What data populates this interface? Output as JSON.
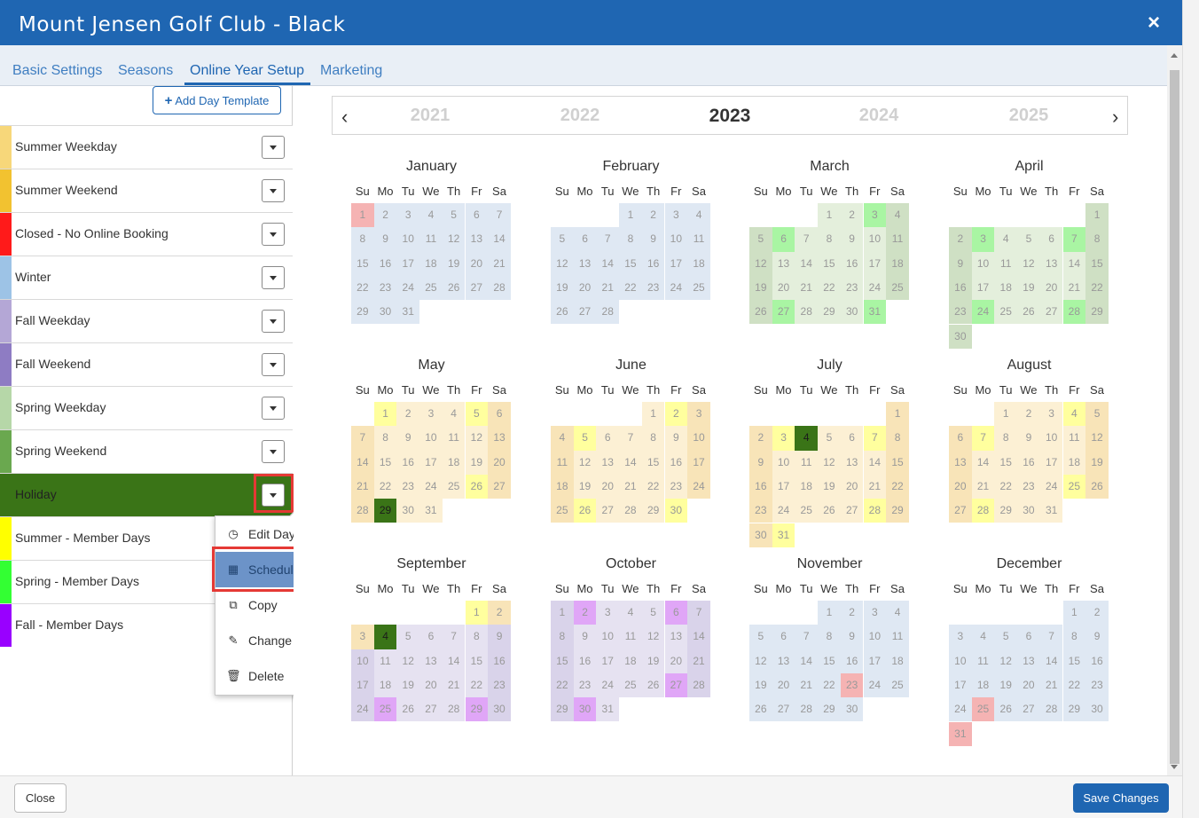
{
  "window": {
    "title": "Mount Jensen Golf Club - Black",
    "close_symbol": "×"
  },
  "tabs": [
    "Basic Settings",
    "Seasons",
    "Online Year Setup",
    "Marketing"
  ],
  "active_tab": "Online Year Setup",
  "sidebar": {
    "add_button_label": "Add Day Template",
    "templates": [
      {
        "name": "Summer Weekday",
        "color": "#f7d77a"
      },
      {
        "name": "Summer Weekend",
        "color": "#f2c230"
      },
      {
        "name": "Closed - No Online Booking",
        "color": "#ff1a1a"
      },
      {
        "name": "Winter",
        "color": "#9dc3e6"
      },
      {
        "name": "Fall Weekday",
        "color": "#b4a7d6"
      },
      {
        "name": "Fall Weekend",
        "color": "#8e7cc3"
      },
      {
        "name": "Spring Weekday",
        "color": "#b6d7a8"
      },
      {
        "name": "Spring Weekend",
        "color": "#6aa84f"
      },
      {
        "name": "Holiday",
        "color": "#3a7417"
      },
      {
        "name": "Summer - Member Days",
        "color": "#ffff00"
      },
      {
        "name": "Spring - Member Days",
        "color": "#33ff33"
      },
      {
        "name": "Fall - Member Days",
        "color": "#9900ff"
      }
    ],
    "selected_template": "Holiday"
  },
  "context_menu": {
    "items": [
      {
        "label": "Edit Day Template",
        "icon": "clock-icon"
      },
      {
        "label": "Schedule Dates",
        "icon": "calendar-icon"
      },
      {
        "label": "Copy",
        "icon": "copy-icon"
      },
      {
        "label": "Change Color",
        "icon": "paintbrush-icon"
      },
      {
        "label": "Delete",
        "icon": "trash-icon"
      }
    ],
    "active_item": "Schedule Dates"
  },
  "calendar": {
    "years": [
      "2021",
      "2022",
      "2023",
      "2024",
      "2025"
    ],
    "current_year": "2023",
    "prev_symbol": "‹",
    "next_symbol": "›",
    "weekdays": [
      "Su",
      "Mo",
      "Tu",
      "We",
      "Th",
      "Fr",
      "Sa"
    ],
    "template_colors": {
      "winter": "#dfe8f3",
      "spring_weekday": "#e4efdc",
      "spring_weekend": "#cfe0c4",
      "spring_member": "#a9f5a3",
      "summer_weekday": "#fcf0d4",
      "summer_weekend": "#f8e4b8",
      "summer_member": "#ffff9e",
      "fall_weekday": "#e6e2f1",
      "fall_weekend": "#d9d3ea",
      "fall_member": "#e0a6f7",
      "closed": "#f5b3b3",
      "holiday": "#3a7417"
    },
    "months": [
      {
        "name": "January",
        "days": 31,
        "start": 0,
        "ranges": [
          {
            "from": 1,
            "to": 31,
            "type": "winter"
          }
        ],
        "overrides": {
          "1": "closed"
        }
      },
      {
        "name": "February",
        "days": 28,
        "start": 3,
        "ranges": [
          {
            "from": 1,
            "to": 28,
            "type": "winter"
          }
        ],
        "overrides": {}
      },
      {
        "name": "March",
        "days": 31,
        "start": 3,
        "ranges": [
          {
            "from": 1,
            "to": 31,
            "type": "spring"
          }
        ],
        "overrides": {
          "3": "spring_member",
          "6": "spring_member",
          "27": "spring_member",
          "31": "spring_member"
        }
      },
      {
        "name": "April",
        "days": 30,
        "start": 6,
        "ranges": [
          {
            "from": 1,
            "to": 30,
            "type": "spring"
          }
        ],
        "overrides": {
          "3": "spring_member",
          "7": "spring_member",
          "24": "spring_member",
          "28": "spring_member"
        }
      },
      {
        "name": "May",
        "days": 31,
        "start": 1,
        "ranges": [
          {
            "from": 1,
            "to": 31,
            "type": "summer"
          }
        ],
        "overrides": {
          "1": "summer_member",
          "5": "summer_member",
          "26": "summer_member",
          "29": "holiday"
        }
      },
      {
        "name": "June",
        "days": 30,
        "start": 4,
        "ranges": [
          {
            "from": 1,
            "to": 30,
            "type": "summer"
          }
        ],
        "overrides": {
          "2": "summer_member",
          "5": "summer_member",
          "26": "summer_member",
          "30": "summer_member"
        }
      },
      {
        "name": "July",
        "days": 31,
        "start": 6,
        "ranges": [
          {
            "from": 1,
            "to": 31,
            "type": "summer"
          }
        ],
        "overrides": {
          "3": "summer_member",
          "4": "holiday",
          "7": "summer_member",
          "28": "summer_member",
          "31": "summer_member"
        }
      },
      {
        "name": "August",
        "days": 31,
        "start": 2,
        "ranges": [
          {
            "from": 1,
            "to": 31,
            "type": "summer"
          }
        ],
        "overrides": {
          "4": "summer_member",
          "7": "summer_member",
          "25": "summer_member",
          "28": "summer_member"
        }
      },
      {
        "name": "September",
        "days": 30,
        "start": 5,
        "ranges": [
          {
            "from": 1,
            "to": 3,
            "type": "summer"
          },
          {
            "from": 4,
            "to": 30,
            "type": "fall"
          }
        ],
        "overrides": {
          "1": "summer_member",
          "4": "holiday",
          "25": "fall_member",
          "29": "fall_member"
        }
      },
      {
        "name": "October",
        "days": 31,
        "start": 0,
        "ranges": [
          {
            "from": 1,
            "to": 31,
            "type": "fall"
          }
        ],
        "overrides": {
          "2": "fall_member",
          "6": "fall_member",
          "27": "fall_member",
          "30": "fall_member"
        }
      },
      {
        "name": "November",
        "days": 30,
        "start": 3,
        "ranges": [
          {
            "from": 1,
            "to": 30,
            "type": "winter"
          }
        ],
        "overrides": {
          "23": "closed"
        }
      },
      {
        "name": "December",
        "days": 31,
        "start": 5,
        "ranges": [
          {
            "from": 1,
            "to": 31,
            "type": "winter"
          }
        ],
        "overrides": {
          "25": "closed",
          "31": "closed"
        }
      }
    ]
  },
  "footer": {
    "close_label": "Close",
    "save_label": "Save Changes"
  }
}
